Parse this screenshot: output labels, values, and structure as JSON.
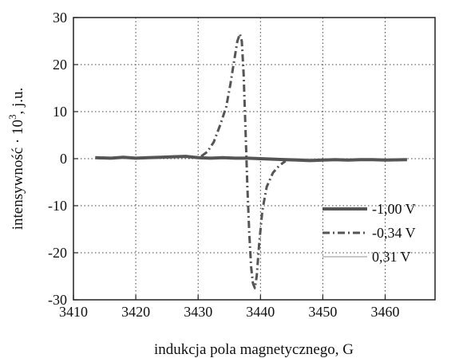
{
  "chart_data": {
    "type": "line",
    "title": "",
    "xlabel": "indukcja pola magnetycznego, G",
    "ylabel_parts": [
      "intensywność · 10",
      "3",
      ", j.u."
    ],
    "xlim": [
      3410,
      3468
    ],
    "ylim": [
      -30,
      30
    ],
    "xticks": [
      "3410",
      "3420",
      "3430",
      "3440",
      "3450",
      "3460"
    ],
    "yticks": [
      "30",
      "20",
      "10",
      "0",
      "-10",
      "-20",
      "-30"
    ],
    "grid": true,
    "legend_position": "center-right",
    "series": [
      {
        "name": "-1,00 V",
        "style": "solid",
        "color": "#555555",
        "x": [
          3413.5,
          3416,
          3418,
          3420,
          3422,
          3424,
          3426,
          3428,
          3430,
          3432,
          3434,
          3436,
          3438,
          3440,
          3442,
          3444,
          3446,
          3448,
          3450,
          3452,
          3454,
          3456,
          3458,
          3460,
          3463.5
        ],
        "y": [
          0.2,
          0.1,
          0.3,
          0.1,
          0.2,
          0.3,
          0.4,
          0.5,
          0.2,
          0.1,
          0.2,
          0.1,
          0.1,
          0.0,
          -0.1,
          -0.2,
          -0.3,
          -0.4,
          -0.3,
          -0.2,
          -0.3,
          -0.2,
          -0.2,
          -0.3,
          -0.2
        ]
      },
      {
        "name": "-0,34 V",
        "style": "dashdot",
        "color": "#555555",
        "x": [
          3430.5,
          3431.5,
          3432.5,
          3433.5,
          3434.5,
          3435.2,
          3435.8,
          3436.3,
          3436.7,
          3437.0,
          3437.3,
          3437.6,
          3437.9,
          3438.2,
          3438.5,
          3438.8,
          3439.1,
          3439.4,
          3439.8,
          3440.3,
          3441.0,
          3442.0,
          3443.0,
          3444.0
        ],
        "y": [
          0.5,
          1.5,
          3.5,
          7.0,
          11.0,
          16.0,
          21.0,
          25.0,
          26.5,
          25.0,
          18.0,
          6.0,
          -6.0,
          -16.0,
          -23.0,
          -26.5,
          -27.5,
          -25.0,
          -18.0,
          -11.0,
          -6.0,
          -3.0,
          -1.5,
          -0.5
        ]
      },
      {
        "name": "0,31 V",
        "style": "solid-light",
        "color": "#c8c8c8",
        "x": [
          3413.5,
          3418,
          3423,
          3428,
          3433,
          3438,
          3443,
          3448,
          3453,
          3458,
          3463.5
        ],
        "y": [
          0.1,
          0.2,
          0.1,
          0.3,
          0.2,
          0.1,
          0.0,
          -0.1,
          -0.2,
          -0.1,
          -0.1
        ]
      }
    ]
  }
}
